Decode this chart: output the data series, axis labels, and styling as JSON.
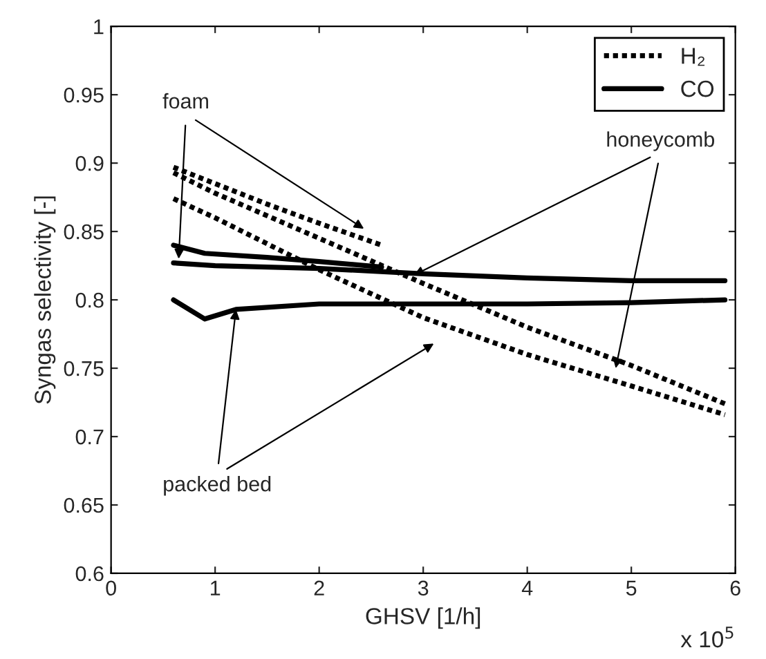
{
  "chart_data": {
    "type": "line",
    "xlabel": "GHSV [1/h]",
    "ylabel": "Syngas selectivity [-]",
    "xlim": [
      0,
      6
    ],
    "ylim": [
      0.6,
      1
    ],
    "xticks": [
      0,
      1,
      2,
      3,
      4,
      5,
      6
    ],
    "yticks": [
      0.6,
      0.65,
      0.7,
      0.75,
      0.8,
      0.85,
      0.9,
      0.95,
      1
    ],
    "grid": false,
    "legend": "top right",
    "marker": "none",
    "annotations": [
      {
        "text": "foam",
        "x": 0.65,
        "y": 0.83
      },
      {
        "text": "honeycomb",
        "x": 4.85,
        "y": 0.75
      },
      {
        "text": "packed bed",
        "x": 1.2,
        "y": 0.793
      },
      "x 10$^{5}$"
    ],
    "series": [
      {
        "name": "H₂",
        "color": "#000000",
        "line_style": "dotted",
        "x": [
          0.6,
          1,
          1.5,
          2,
          2.6
        ],
        "values": [
          0.897,
          0.885,
          0.87,
          0.856,
          0.84
        ]
      },
      {
        "color": "#000000",
        "line_style": "dotted",
        "x": [
          0.6,
          1,
          2,
          3,
          4,
          5,
          5.9
        ],
        "values": [
          0.893,
          0.878,
          0.845,
          0.812,
          0.78,
          0.752,
          0.724
        ]
      },
      {
        "color": "#000000",
        "line_style": "dotted",
        "x": [
          0.6,
          1,
          2,
          3,
          4,
          5,
          5.9
        ],
        "values": [
          0.874,
          0.86,
          0.822,
          0.787,
          0.76,
          0.737,
          0.716
        ]
      },
      {
        "name": "CO",
        "color": "#000000",
        "line_style": "solid",
        "x": [
          0.6,
          0.9,
          1.5,
          2,
          2.6
        ],
        "values": [
          0.84,
          0.834,
          0.831,
          0.828,
          0.824
        ]
      },
      {
        "color": "#000000",
        "line_style": "solid",
        "x": [
          0.6,
          1,
          2,
          3,
          4,
          5,
          5.9
        ],
        "values": [
          0.827,
          0.825,
          0.823,
          0.819,
          0.816,
          0.814,
          0.814
        ]
      },
      {
        "color": "#000000",
        "line_style": "solid",
        "x": [
          0.6,
          0.9,
          1.2,
          2,
          3,
          4,
          5,
          5.9
        ],
        "values": [
          0.8,
          0.786,
          0.793,
          0.797,
          0.797,
          0.797,
          0.798,
          0.8
        ]
      }
    ]
  }
}
